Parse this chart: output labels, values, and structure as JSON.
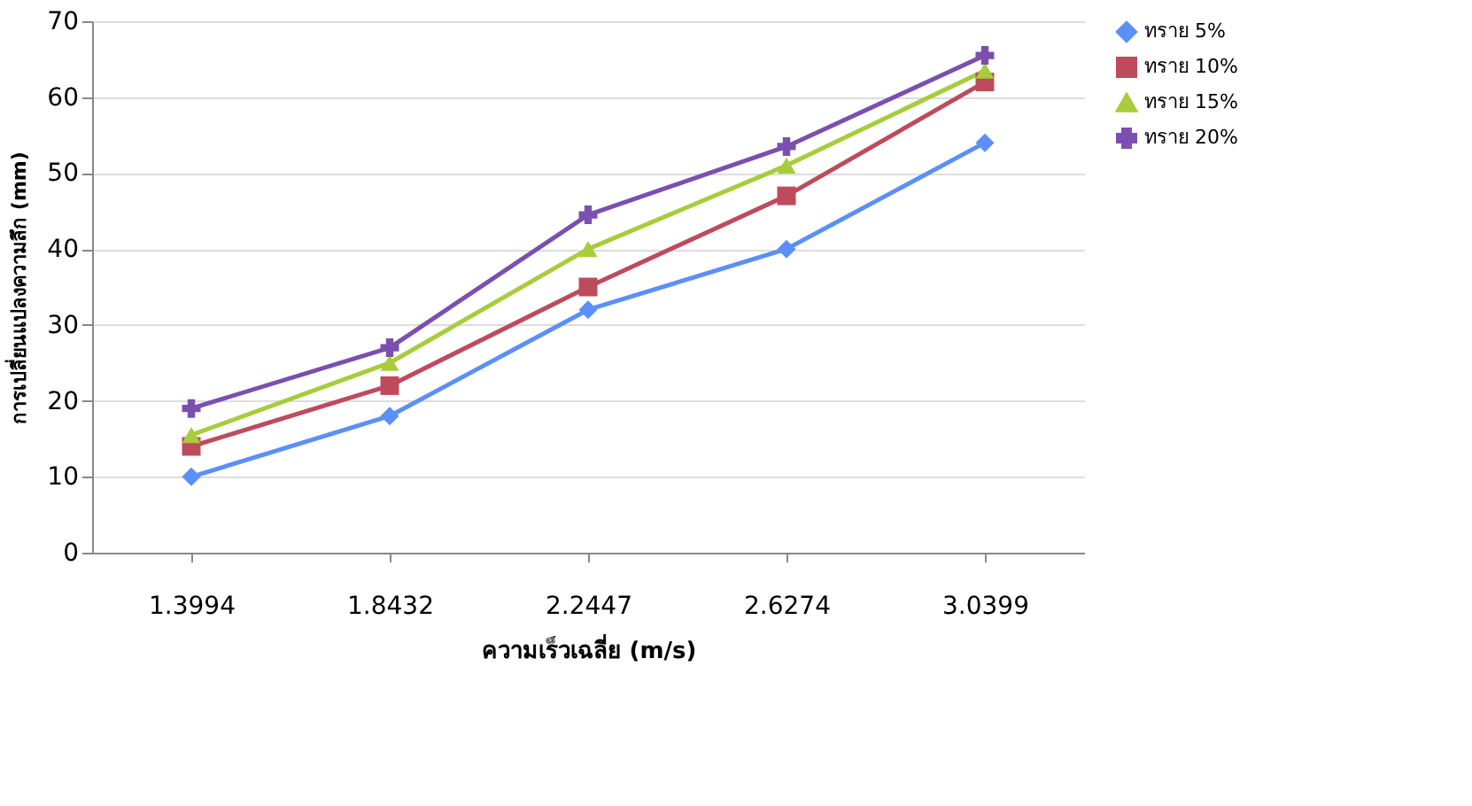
{
  "chart_data": {
    "type": "line",
    "xlabel": "ความเร็วเฉลี่ย (m/s)",
    "ylabel": "การเปลี่ยนแปลงความลึก (mm)",
    "categories": [
      "1.3994",
      "1.8432",
      "2.2447",
      "2.6274",
      "3.0399"
    ],
    "ylim": [
      0,
      70
    ],
    "yticks": [
      0,
      10,
      20,
      30,
      40,
      50,
      60,
      70
    ],
    "grid": "y",
    "legend": "right",
    "series": [
      {
        "name": "ทราย 5%",
        "color": "#5b8ff9",
        "marker": "diamond",
        "values": [
          10,
          18,
          32,
          40,
          54
        ]
      },
      {
        "name": "ทราย 10%",
        "color": "#be4b5c",
        "marker": "square",
        "values": [
          14,
          22,
          35,
          47,
          62
        ]
      },
      {
        "name": "ทราย 15%",
        "color": "#a8cc3c",
        "marker": "triangle",
        "values": [
          15.5,
          25,
          40,
          51,
          63.5
        ]
      },
      {
        "name": "ทราย 20%",
        "color": "#7b4fb0",
        "marker": "cross",
        "values": [
          19,
          27,
          44.5,
          53.5,
          65.5
        ]
      }
    ]
  }
}
